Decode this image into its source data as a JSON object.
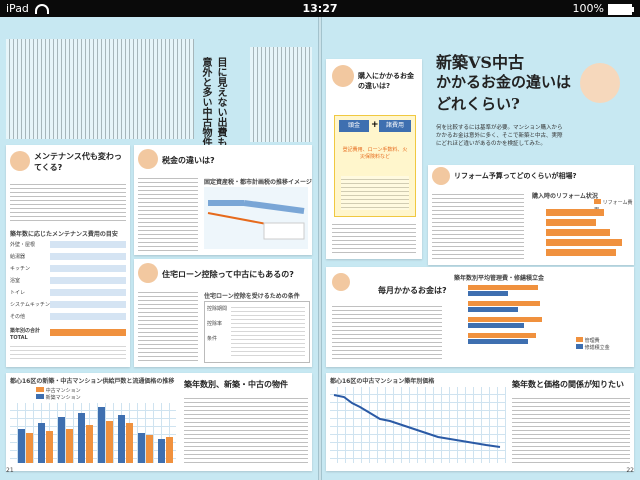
{
  "status_bar": {
    "device": "iPad",
    "time": "13:27",
    "battery": "100%"
  },
  "left_page": {
    "vertical_heading": "目に見えない出費も意外と多い中古物件",
    "maintenance_heading": "メンテナンス代も変わってくる?",
    "maintenance_table_title": "築年数に応じたメンテナンス費用の目安",
    "maintenance_rows": [
      "外壁・屋根",
      "給湯器",
      "キッチン",
      "浴室",
      "トイレ",
      "システムキッチン",
      "その他",
      "築年別の合計"
    ],
    "maintenance_total_label": "TOTAL",
    "tax_heading": "税金の違いは?",
    "tax_chart_title": "固定資産税・都市計画税の推移イメージ",
    "loan_heading": "住宅ローン控除って中古にもあるの?",
    "loan_table_title": "住宅ローン控除を受けるための条件",
    "loan_rows": [
      "控除期間",
      "控除率",
      "条件"
    ],
    "bottom_chart_title": "都心16区の新築・中古マンション供給戸数と流通価格の推移",
    "bottom_chart_legend": [
      "中古マンション",
      "新築マンション"
    ],
    "bottom_heading": "築年数別、新築・中古の物件",
    "page_number": "21"
  },
  "right_page": {
    "title_line1": "新築VS中古",
    "title_line2": "かかるお金の違いは",
    "title_line3": "どれくらい?",
    "lead": "何を比較するには基準が必要。マンション購入からかかるお金は意外に多く、そこで新築と中古、実際にどれほど違いがあるのかを検証してみた。",
    "purchase_heading": "購入にかかるお金の違いは?",
    "purchase_boxes": [
      "頭金",
      "諸費用"
    ],
    "purchase_note": "登記費用、ローン手数料、火災保険料など",
    "reform_heading": "リフォーム予算ってどのくらいが相場?",
    "reform_chart_title": "購入時のリフォーム状況",
    "reform_legend": "リフォーム費用",
    "monthly_heading": "毎月かかるお金は?",
    "monthly_chart_title": "築年数別平均管理費・修繕積立金",
    "monthly_legend": [
      "管理費",
      "修繕積立金"
    ],
    "bottom_chart_title": "都心16区の中古マンション築年別価格",
    "bottom_heading": "築年数と価格の関係が知りたい",
    "page_number": "22"
  },
  "colors": {
    "background": "#c7e8f2",
    "accent_orange": "#e66a1c",
    "accent_blue": "#3e6fb0"
  }
}
